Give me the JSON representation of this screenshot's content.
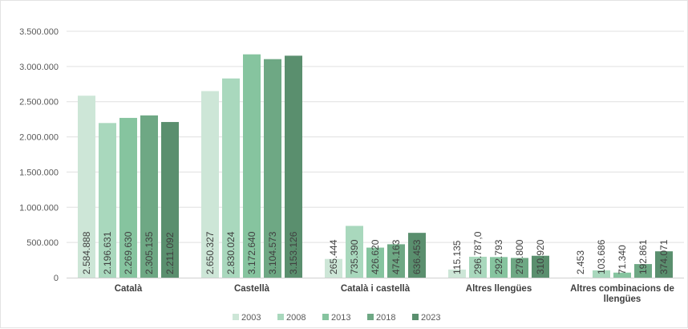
{
  "chart_data": {
    "type": "bar",
    "title": "",
    "xlabel": "",
    "ylabel": "",
    "ylim": [
      0,
      3500000
    ],
    "yticks": [
      0,
      500000,
      1000000,
      1500000,
      2000000,
      2500000,
      3000000,
      3500000
    ],
    "ytick_labels": [
      "0",
      "500.000",
      "1.000.000",
      "1.500.000",
      "2.000.000",
      "2.500.000",
      "3.000.000",
      "3.500.000"
    ],
    "grid": true,
    "legend_position": "bottom",
    "categories": [
      [
        "Català"
      ],
      [
        "Castellà"
      ],
      [
        "Català i castellà"
      ],
      [
        "Altres llengües"
      ],
      [
        "Altres combinacions de",
        "llengües"
      ]
    ],
    "series": [
      {
        "name": "2003",
        "color": "#cde6d7",
        "values": [
          2584888,
          2650327,
          265444,
          115135,
          2453
        ],
        "labels": [
          "2.584.888",
          "2.650.327",
          "265.444",
          "115.135",
          "2.453"
        ]
      },
      {
        "name": "2008",
        "color": "#a9d8bd",
        "values": [
          2196631,
          2830024,
          735390,
          296787,
          103686
        ],
        "labels": [
          "2.196.631",
          "2.830.024",
          "735.390",
          "296.787,0",
          "103.686"
        ]
      },
      {
        "name": "2013",
        "color": "#86c49f",
        "values": [
          2269630,
          3172640,
          426620,
          292793,
          71340
        ],
        "labels": [
          "2.269.630",
          "3.172.640",
          "426.620",
          "292.793",
          "71.340"
        ]
      },
      {
        "name": "2018",
        "color": "#6ea884",
        "values": [
          2305135,
          3104573,
          474163,
          279800,
          192861
        ],
        "labels": [
          "2.305.135",
          "3.104.573",
          "474.163",
          "279.800",
          "192.861"
        ]
      },
      {
        "name": "2023",
        "color": "#5a8f6e",
        "values": [
          2211092,
          3153126,
          636453,
          310920,
          374071
        ],
        "labels": [
          "2.211.092",
          "3.153.126",
          "636.453",
          "310.920",
          "374.071"
        ]
      }
    ]
  }
}
